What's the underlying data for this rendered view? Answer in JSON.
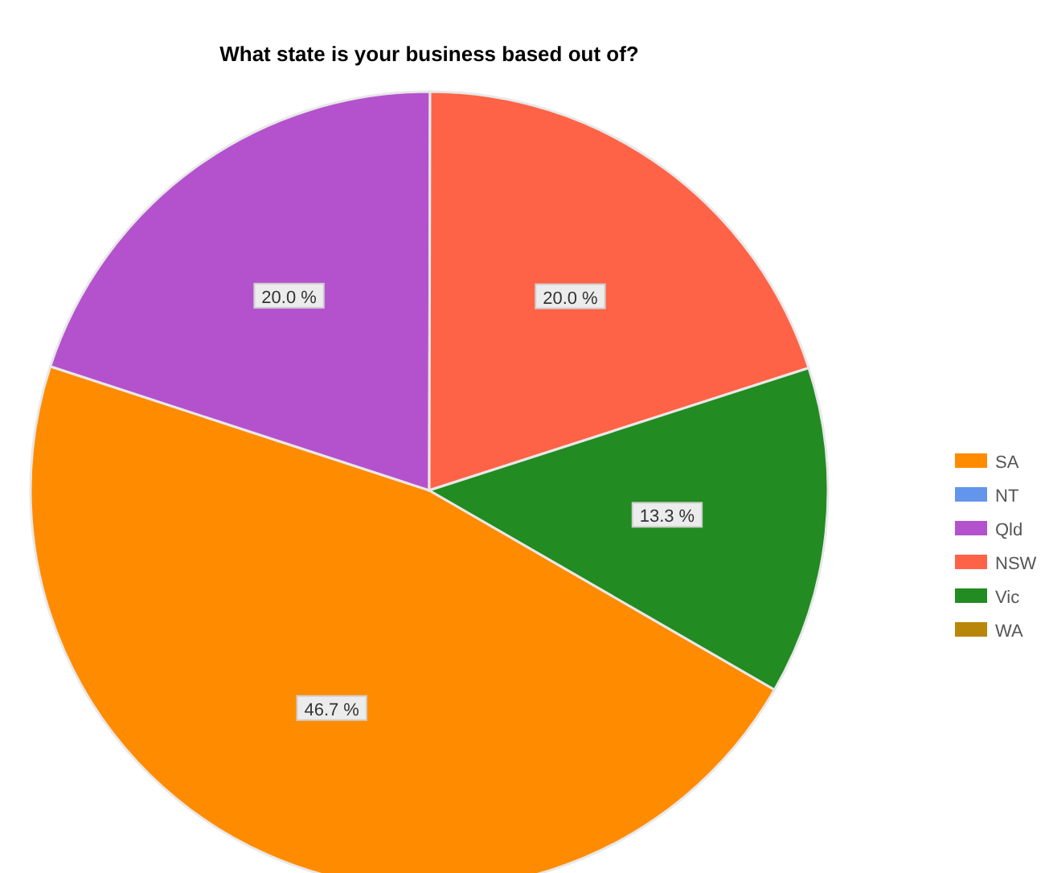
{
  "chart_data": {
    "type": "pie",
    "title": "What state is your business based out of?",
    "categories": [
      "SA",
      "NT",
      "Qld",
      "NSW",
      "Vic",
      "WA"
    ],
    "values": [
      46.7,
      0,
      20,
      20,
      13.3,
      0
    ],
    "colors": [
      "#ff8c00",
      "#6495ed",
      "#b452cd",
      "#ff6347",
      "#228b22",
      "#b8860b"
    ],
    "value_labels": [
      "46.7 %",
      null,
      "20.0 %",
      "20.0 %",
      "13.3 %",
      null
    ],
    "legend": "right"
  }
}
